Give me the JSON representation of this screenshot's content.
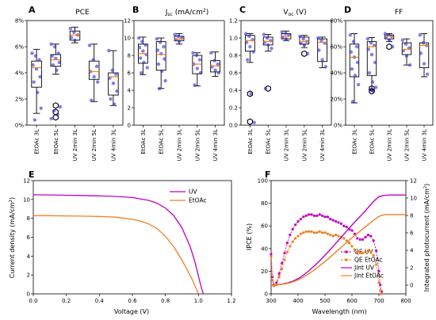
{
  "colors": {
    "points": "#2b2bd9",
    "median": "#ff7f0e",
    "uv": "#c000c0",
    "etoac": "#f08020",
    "box": "#000000"
  },
  "categories": [
    "EtOAc 3L",
    "EtOAc 5L",
    "UV 2min 3L",
    "UV 2min 5L",
    "UV 4min 3L"
  ],
  "chart_data": [
    {
      "type": "box",
      "letter": "A",
      "title": "PCE",
      "ylim": [
        0,
        8
      ],
      "yticks": [
        "0%",
        "2%",
        "4%",
        "6%",
        "8%"
      ],
      "ytick_values": [
        0,
        2,
        4,
        6,
        8
      ],
      "boxes": [
        {
          "q1": 2.9,
          "median": 4.4,
          "q3": 4.9,
          "whisker_low": 0.9,
          "whisker_high": 5.8,
          "points": [
            5.5,
            5.3,
            5.0,
            4.6,
            4.3,
            3.7,
            3.3,
            2.5,
            1.3,
            0.4
          ],
          "outliers": []
        },
        {
          "q1": 4.5,
          "median": 5.0,
          "q3": 5.4,
          "whisker_low": 3.9,
          "whisker_high": 6.2,
          "points": [
            6.2,
            6.0,
            5.5,
            5.3,
            5.1,
            4.8,
            4.6,
            4.2,
            1.4,
            1.1,
            0.8,
            0.5
          ],
          "outliers": [
            0.6,
            1.0,
            1.5
          ]
        },
        {
          "q1": 6.5,
          "median": 6.9,
          "q3": 7.2,
          "whisker_low": 6.3,
          "whisker_high": 7.5,
          "points": [
            7.4,
            7.1,
            6.9,
            6.7,
            6.5
          ],
          "outliers": []
        },
        {
          "q1": 3.5,
          "median": 4.1,
          "q3": 4.9,
          "whisker_low": 1.8,
          "whisker_high": 6.2,
          "points": [
            6.1,
            5.0,
            4.5,
            4.1,
            3.7,
            3.3,
            1.9
          ],
          "outliers": []
        },
        {
          "q1": 2.3,
          "median": 3.7,
          "q3": 4.0,
          "whisker_low": 1.5,
          "whisker_high": 5.7,
          "points": [
            5.7,
            4.2,
            3.9,
            3.6,
            3.2,
            2.6,
            2.0,
            1.6
          ],
          "outliers": []
        }
      ]
    },
    {
      "type": "box",
      "letter": "B",
      "title": "Jsc (mA/cm2)",
      "title_main": "J",
      "title_sub": "sc",
      "title_rest": " (mA/cm",
      "title_sup": "2",
      "title_end": ")",
      "ylim": [
        0,
        12
      ],
      "yticks": [
        "0",
        "2",
        "4",
        "6",
        "8",
        "10",
        "12"
      ],
      "ytick_values": [
        0,
        2,
        4,
        6,
        8,
        10,
        12
      ],
      "boxes": [
        {
          "q1": 7.1,
          "median": 8.2,
          "q3": 9.3,
          "whisker_low": 5.8,
          "whisker_high": 10.1,
          "points": [
            10.0,
            9.6,
            9.2,
            8.9,
            8.5,
            8.1,
            7.7,
            7.2,
            6.6,
            6.0
          ],
          "outliers": []
        },
        {
          "q1": 6.3,
          "median": 8.1,
          "q3": 9.6,
          "whisker_low": 4.2,
          "whisker_high": 10.0,
          "points": [
            9.9,
            9.5,
            9.0,
            8.6,
            8.2,
            7.6,
            7.0,
            6.2,
            5.1,
            4.2
          ],
          "outliers": []
        },
        {
          "q1": 9.7,
          "median": 9.9,
          "q3": 10.2,
          "whisker_low": 9.3,
          "whisker_high": 10.5,
          "points": [
            10.4,
            10.2,
            10.0,
            9.8,
            9.6
          ],
          "outliers": []
        },
        {
          "q1": 5.9,
          "median": 7.0,
          "q3": 8.0,
          "whisker_low": 4.5,
          "whisker_high": 8.3,
          "points": [
            8.3,
            8.0,
            7.5,
            7.0,
            6.5,
            6.0,
            4.6
          ],
          "outliers": []
        },
        {
          "q1": 6.1,
          "median": 6.8,
          "q3": 7.4,
          "whisker_low": 5.6,
          "whisker_high": 8.4,
          "points": [
            8.3,
            7.4,
            7.0,
            6.7,
            6.3,
            6.0
          ],
          "outliers": []
        }
      ]
    },
    {
      "type": "box",
      "letter": "C",
      "title": "Voc (V)",
      "title_main": "V",
      "title_sub": "oc",
      "title_rest": " (V)",
      "ylim": [
        0,
        1.2
      ],
      "yticks": [
        "0.0",
        "0.2",
        "0.4",
        "0.6",
        "0.8",
        "1.0",
        "1.2"
      ],
      "ytick_values": [
        0,
        0.2,
        0.4,
        0.6,
        0.8,
        1.0,
        1.2
      ],
      "boxes": [
        {
          "q1": 0.85,
          "median": 0.97,
          "q3": 1.03,
          "whisker_low": 0.72,
          "whisker_high": 1.05,
          "points": [
            1.05,
            1.02,
            0.98,
            0.95,
            0.9,
            0.84,
            0.75,
            0.36,
            0.03
          ],
          "outliers": [
            0.36,
            0.04
          ]
        },
        {
          "q1": 0.92,
          "median": 0.96,
          "q3": 1.01,
          "whisker_low": 0.85,
          "whisker_high": 1.04,
          "points": [
            1.04,
            1.0,
            0.97,
            0.95,
            0.92,
            0.88,
            0.42
          ],
          "outliers": [
            0.42
          ]
        },
        {
          "q1": 0.99,
          "median": 1.02,
          "q3": 1.05,
          "whisker_low": 0.97,
          "whisker_high": 1.08,
          "points": [
            1.07,
            1.05,
            1.03,
            1.01,
            0.99
          ],
          "outliers": []
        },
        {
          "q1": 0.93,
          "median": 0.96,
          "q3": 1.01,
          "whisker_low": 0.89,
          "whisker_high": 1.03,
          "points": [
            1.02,
            0.99,
            0.96,
            0.94,
            0.92,
            0.82
          ],
          "outliers": [
            0.82
          ]
        },
        {
          "q1": 0.73,
          "median": 0.95,
          "q3": 0.99,
          "whisker_low": 0.66,
          "whisker_high": 1.01,
          "points": [
            1.0,
            0.97,
            0.94,
            0.86,
            0.75,
            0.67
          ],
          "outliers": []
        }
      ]
    },
    {
      "type": "box",
      "letter": "D",
      "title": "FF",
      "ylim": [
        0,
        80
      ],
      "yticks": [
        "0%",
        "20%",
        "40%",
        "60%",
        "80%"
      ],
      "ytick_values": [
        0,
        20,
        40,
        60,
        80
      ],
      "boxes": [
        {
          "q1": 37,
          "median": 52,
          "q3": 62,
          "whisker_low": 17,
          "whisker_high": 70,
          "points": [
            69,
            64,
            60,
            56,
            52,
            48,
            43,
            38,
            31,
            18
          ],
          "outliers": []
        },
        {
          "q1": 38,
          "median": 60,
          "q3": 64,
          "whisker_low": 27,
          "whisker_high": 67,
          "points": [
            66,
            63,
            61,
            58,
            54,
            48,
            40,
            33,
            29,
            27,
            26
          ],
          "outliers": [
            26,
            28
          ]
        },
        {
          "q1": 66,
          "median": 68,
          "q3": 69,
          "whisker_low": 64,
          "whisker_high": 70,
          "points": [
            70,
            69,
            68,
            67,
            65,
            60
          ],
          "outliers": [
            60
          ]
        },
        {
          "q1": 54,
          "median": 58,
          "q3": 63,
          "whisker_low": 46,
          "whisker_high": 66,
          "points": [
            65,
            62,
            59,
            57,
            53,
            46
          ],
          "outliers": []
        },
        {
          "q1": 44,
          "median": 61,
          "q3": 63,
          "whisker_low": 37,
          "whisker_high": 70,
          "points": [
            69,
            63,
            61,
            55,
            47,
            39
          ],
          "outliers": []
        }
      ]
    },
    {
      "type": "line",
      "letter": "E",
      "xlabel": "Voltage (V)",
      "ylabel": "Current density (mA/cm2)",
      "ylabel_main": "Current density (mA/cm",
      "ylabel_sup": "2",
      "ylabel_end": ")",
      "xlim": [
        0,
        1.2
      ],
      "ylim": [
        0,
        12
      ],
      "xticks": [
        "0.0",
        "0.2",
        "0.4",
        "0.6",
        "0.8",
        "1.0",
        "1.2"
      ],
      "xtick_values": [
        0,
        0.2,
        0.4,
        0.6,
        0.8,
        1.0,
        1.2
      ],
      "yticks": [
        "0",
        "2",
        "4",
        "6",
        "8",
        "10",
        "12"
      ],
      "ytick_values": [
        0,
        2,
        4,
        6,
        8,
        10,
        12
      ],
      "legend": "top-right",
      "series": [
        {
          "name": "UV",
          "color_key": "uv",
          "x": [
            0,
            0.1,
            0.2,
            0.3,
            0.4,
            0.5,
            0.6,
            0.7,
            0.75,
            0.8,
            0.85,
            0.9,
            0.95,
            0.98,
            1.0,
            1.02,
            1.03
          ],
          "y": [
            10.5,
            10.48,
            10.45,
            10.42,
            10.38,
            10.32,
            10.2,
            9.9,
            9.6,
            9.1,
            8.3,
            7.0,
            5.0,
            3.3,
            1.9,
            0.5,
            0
          ]
        },
        {
          "name": "EtOAc",
          "color_key": "etoac",
          "x": [
            0,
            0.1,
            0.2,
            0.3,
            0.4,
            0.5,
            0.6,
            0.65,
            0.7,
            0.75,
            0.8,
            0.85,
            0.9,
            0.93,
            0.96,
            0.98,
            1.0
          ],
          "y": [
            8.3,
            8.28,
            8.26,
            8.23,
            8.2,
            8.12,
            7.9,
            7.7,
            7.4,
            6.9,
            6.1,
            5.0,
            3.6,
            2.6,
            1.6,
            0.8,
            0
          ]
        }
      ]
    },
    {
      "type": "line",
      "letter": "F",
      "xlabel": "Wavelength (nm)",
      "ylabel": "IPCE (%)",
      "y2label": "Integrated photocurrent (mA/cm2)",
      "y2label_main": "Integrated photocurrent (mA/cm",
      "y2label_sup": "2",
      "y2label_end": ")",
      "xlim": [
        300,
        800
      ],
      "ylim": [
        0,
        100
      ],
      "y2lim": [
        -1,
        12
      ],
      "xticks": [
        "300",
        "400",
        "500",
        "600",
        "700",
        "800"
      ],
      "xtick_values": [
        300,
        400,
        500,
        600,
        700,
        800
      ],
      "yticks": [
        "0",
        "20",
        "40",
        "60",
        "80",
        "100"
      ],
      "ytick_values": [
        0,
        20,
        40,
        60,
        80,
        100
      ],
      "y2ticks": [
        "0",
        "2",
        "4",
        "6",
        "8",
        "10",
        "12"
      ],
      "y2tick_values": [
        0,
        2,
        4,
        6,
        8,
        10,
        12
      ],
      "legend": "bottom-right",
      "series": [
        {
          "name": "QE UV",
          "axis": "left",
          "marker": true,
          "color_key": "uv",
          "x": [
            300,
            305,
            310,
            320,
            330,
            340,
            350,
            360,
            370,
            380,
            390,
            400,
            410,
            420,
            430,
            440,
            450,
            460,
            470,
            480,
            490,
            500,
            510,
            520,
            530,
            540,
            550,
            560,
            570,
            580,
            590,
            600,
            610,
            620,
            630,
            640,
            650,
            660,
            670,
            680,
            690,
            700,
            705,
            710
          ],
          "y": [
            35,
            15,
            8,
            10,
            18,
            27,
            36,
            45,
            52,
            57,
            61,
            64,
            66,
            68,
            69,
            70,
            70,
            69,
            69,
            70,
            69,
            68,
            68,
            66,
            65,
            64,
            63,
            62,
            60,
            59,
            57,
            56,
            53,
            49,
            48,
            48,
            50,
            52,
            51,
            47,
            38,
            20,
            8,
            2
          ]
        },
        {
          "name": "QE EtOAc",
          "axis": "left",
          "marker": true,
          "color_key": "etoac",
          "x": [
            300,
            305,
            310,
            320,
            330,
            340,
            350,
            360,
            370,
            380,
            390,
            400,
            410,
            420,
            430,
            440,
            450,
            460,
            470,
            480,
            490,
            500,
            510,
            520,
            530,
            540,
            550,
            560,
            570,
            580,
            590,
            600,
            610,
            620,
            630,
            640,
            650,
            660,
            670,
            680,
            690,
            700,
            705,
            710
          ],
          "y": [
            33,
            12,
            7,
            8,
            15,
            22,
            30,
            37,
            42,
            46,
            49,
            51,
            53,
            54,
            55,
            55,
            55,
            54,
            54,
            55,
            54,
            54,
            53,
            52,
            51,
            52,
            51,
            50,
            49,
            47,
            45,
            42,
            39,
            37,
            36,
            36,
            37,
            38,
            37,
            34,
            26,
            10,
            3,
            0
          ]
        },
        {
          "name": "Jint UV",
          "axis": "right",
          "color_key": "uv",
          "x": [
            300,
            320,
            340,
            360,
            380,
            400,
            420,
            440,
            460,
            480,
            500,
            520,
            540,
            560,
            580,
            600,
            620,
            640,
            660,
            680,
            700,
            720,
            740,
            760,
            780,
            800
          ],
          "y": [
            0,
            0.05,
            0.12,
            0.25,
            0.45,
            0.75,
            1.15,
            1.65,
            2.2,
            2.8,
            3.45,
            4.1,
            4.8,
            5.5,
            6.2,
            6.9,
            7.55,
            8.2,
            8.9,
            9.6,
            10.15,
            10.3,
            10.35,
            10.35,
            10.35,
            10.35
          ]
        },
        {
          "name": "Jint EtOAc",
          "axis": "right",
          "color_key": "etoac",
          "x": [
            300,
            320,
            340,
            360,
            380,
            400,
            420,
            440,
            460,
            480,
            500,
            520,
            540,
            560,
            580,
            600,
            620,
            640,
            660,
            680,
            700,
            720,
            740,
            760,
            780,
            800
          ],
          "y": [
            0,
            0.04,
            0.1,
            0.2,
            0.36,
            0.6,
            0.92,
            1.3,
            1.75,
            2.22,
            2.72,
            3.25,
            3.8,
            4.35,
            4.9,
            5.45,
            5.95,
            6.45,
            6.95,
            7.45,
            7.9,
            8.1,
            8.1,
            8.1,
            8.1,
            8.1
          ]
        }
      ]
    }
  ]
}
